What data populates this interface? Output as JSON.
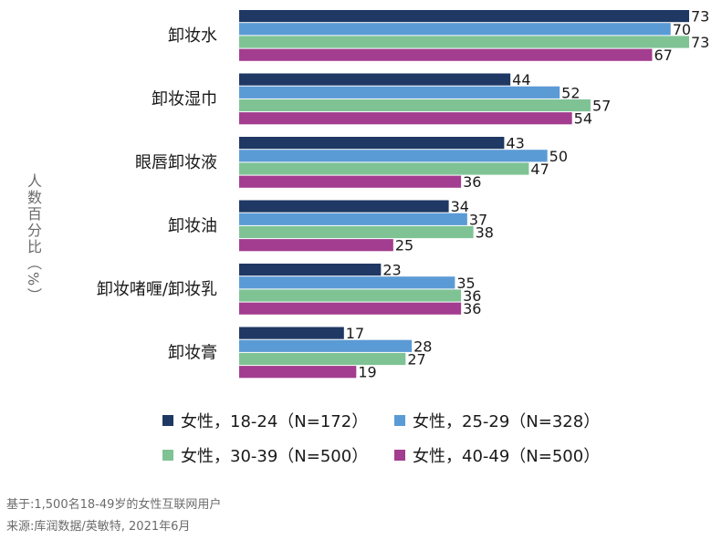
{
  "chart_data": {
    "type": "bar",
    "orientation": "horizontal",
    "categories": [
      "卸妆水",
      "卸妆湿巾",
      "眼唇卸妆液",
      "卸妆油",
      "卸妆啫喱/卸妆乳",
      "卸妆膏"
    ],
    "series": [
      {
        "name": "女性，18-24（N=172）",
        "color": "#1f3864",
        "values": [
          73,
          44,
          43,
          34,
          23,
          17
        ]
      },
      {
        "name": "女性，25-29（N=328）",
        "color": "#5b9bd5",
        "values": [
          70,
          52,
          50,
          37,
          35,
          28
        ]
      },
      {
        "name": "女性，30-39（N=500）",
        "color": "#7fc395",
        "values": [
          73,
          57,
          47,
          38,
          36,
          27
        ]
      },
      {
        "name": "女性，40-49（N=500）",
        "color": "#a33d8f",
        "values": [
          67,
          54,
          36,
          25,
          36,
          19
        ]
      }
    ],
    "ylabel": "人数百分比（%）",
    "xlim": [
      0,
      75
    ],
    "grid": false,
    "legend_position": "bottom"
  },
  "notes": {
    "base": "基于:1,500名18-49岁的女性互联网用户",
    "source": "来源:库润数据/英敏特, 2021年6月"
  }
}
